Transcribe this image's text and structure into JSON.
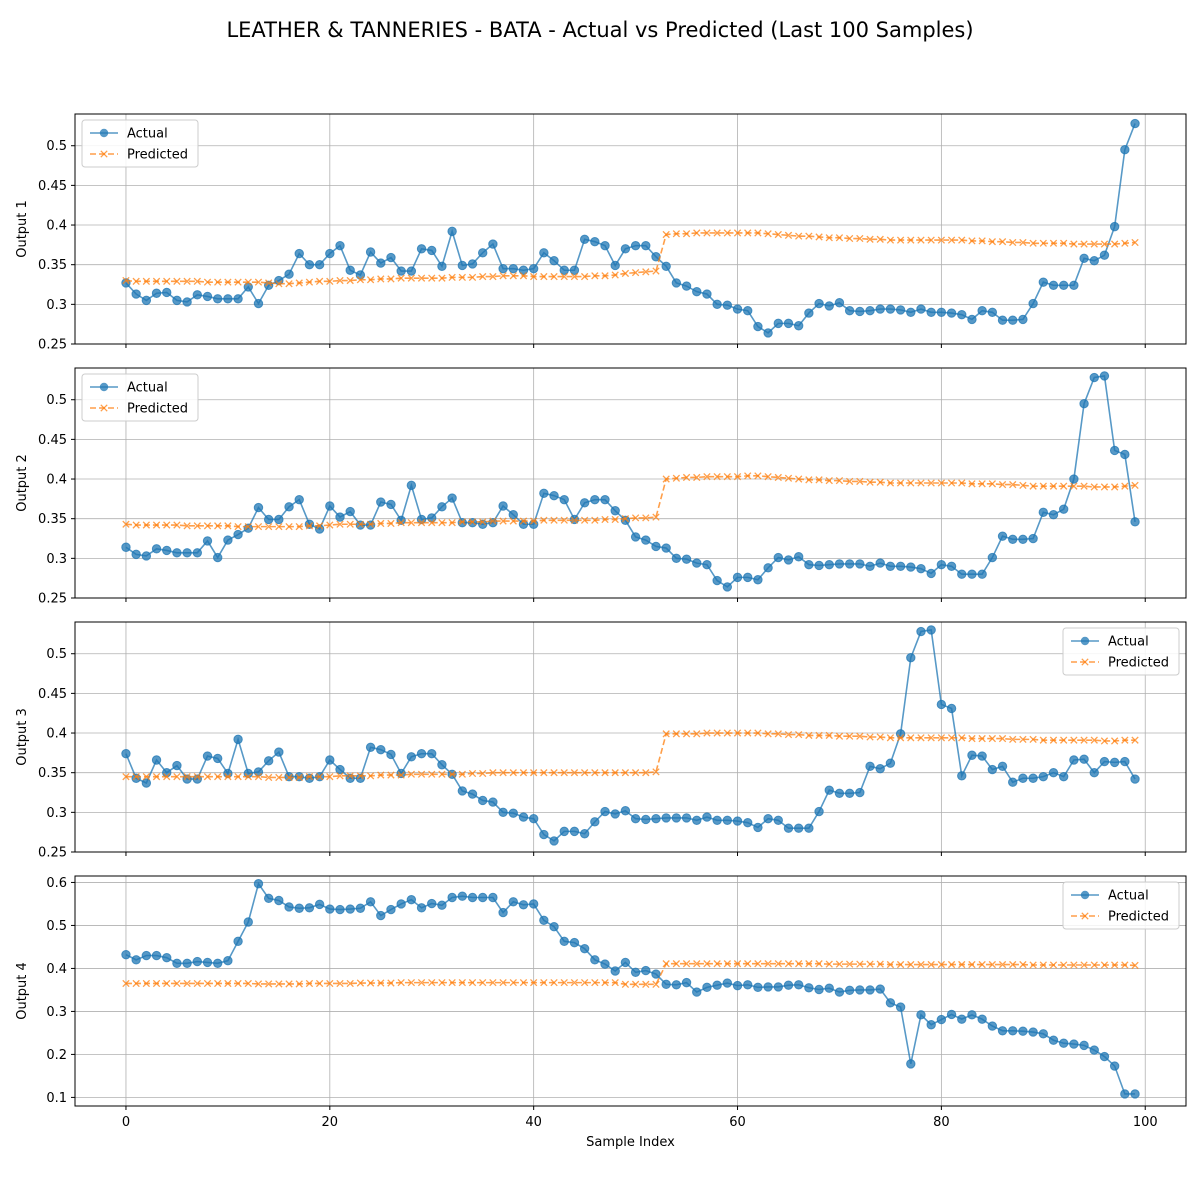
{
  "chart_data": {
    "type": "line",
    "title": "LEATHER & TANNERIES - BATA - Actual vs Predicted (Last 100 Samples)",
    "xlabel": "Sample Index",
    "x_range": [
      0,
      99
    ],
    "xlim": [
      -5,
      104
    ],
    "xticks": [
      0,
      20,
      40,
      60,
      80,
      100
    ],
    "grid": true,
    "colors": {
      "actual": "#1f77b4",
      "predicted": "#ff7f0e"
    },
    "subplots": [
      {
        "ylabel": "Output 1",
        "ylim": [
          0.25,
          0.54
        ],
        "yticks": [
          0.25,
          0.3,
          0.35,
          0.4,
          0.45,
          0.5
        ],
        "legend_position": "upper left",
        "series": [
          {
            "name": "Actual",
            "marker": "circle",
            "linestyle": "solid",
            "values": [
              0.327,
              0.313,
              0.305,
              0.314,
              0.315,
              0.305,
              0.303,
              0.312,
              0.31,
              0.307,
              0.307,
              0.307,
              0.322,
              0.301,
              0.324,
              0.33,
              0.338,
              0.364,
              0.35,
              0.35,
              0.364,
              0.374,
              0.343,
              0.337,
              0.366,
              0.352,
              0.359,
              0.342,
              0.342,
              0.37,
              0.368,
              0.348,
              0.392,
              0.349,
              0.351,
              0.365,
              0.376,
              0.345,
              0.345,
              0.343,
              0.345,
              0.365,
              0.355,
              0.343,
              0.343,
              0.382,
              0.379,
              0.374,
              0.349,
              0.37,
              0.374,
              0.374,
              0.36,
              0.348,
              0.327,
              0.323,
              0.316,
              0.313,
              0.3,
              0.299,
              0.294,
              0.292,
              0.272,
              0.264,
              0.276,
              0.276,
              0.273,
              0.289,
              0.301,
              0.298,
              0.302,
              0.292,
              0.291,
              0.292,
              0.294,
              0.294,
              0.293,
              0.29,
              0.294,
              0.29,
              0.29,
              0.289,
              0.287,
              0.281,
              0.292,
              0.29,
              0.28,
              0.28,
              0.281,
              0.301,
              0.328,
              0.324,
              0.324,
              0.324,
              0.358,
              0.355,
              0.362,
              0.398,
              0.495,
              0.528
            ]
          },
          {
            "name": "Predicted",
            "marker": "x",
            "linestyle": "dashed",
            "values": [
              0.33,
              0.329,
              0.329,
              0.329,
              0.329,
              0.329,
              0.329,
              0.329,
              0.328,
              0.328,
              0.328,
              0.328,
              0.328,
              0.328,
              0.327,
              0.326,
              0.326,
              0.327,
              0.328,
              0.329,
              0.329,
              0.33,
              0.33,
              0.331,
              0.331,
              0.332,
              0.332,
              0.333,
              0.333,
              0.333,
              0.333,
              0.333,
              0.334,
              0.334,
              0.334,
              0.335,
              0.335,
              0.336,
              0.336,
              0.336,
              0.335,
              0.335,
              0.335,
              0.335,
              0.335,
              0.335,
              0.336,
              0.336,
              0.337,
              0.339,
              0.34,
              0.341,
              0.342,
              0.388,
              0.389,
              0.389,
              0.39,
              0.39,
              0.39,
              0.39,
              0.39,
              0.39,
              0.39,
              0.389,
              0.388,
              0.387,
              0.386,
              0.386,
              0.385,
              0.384,
              0.384,
              0.383,
              0.383,
              0.382,
              0.382,
              0.381,
              0.381,
              0.381,
              0.381,
              0.381,
              0.381,
              0.381,
              0.381,
              0.38,
              0.38,
              0.379,
              0.379,
              0.378,
              0.378,
              0.377,
              0.377,
              0.377,
              0.377,
              0.376,
              0.376,
              0.376,
              0.376,
              0.376,
              0.377,
              0.378
            ]
          }
        ]
      },
      {
        "ylabel": "Output 2",
        "ylim": [
          0.25,
          0.54
        ],
        "yticks": [
          0.25,
          0.3,
          0.35,
          0.4,
          0.45,
          0.5
        ],
        "legend_position": "upper left",
        "series": [
          {
            "name": "Actual",
            "marker": "circle",
            "linestyle": "solid",
            "values": [
              0.314,
              0.305,
              0.303,
              0.312,
              0.31,
              0.307,
              0.307,
              0.307,
              0.322,
              0.301,
              0.323,
              0.33,
              0.338,
              0.364,
              0.349,
              0.349,
              0.365,
              0.374,
              0.343,
              0.337,
              0.366,
              0.352,
              0.359,
              0.342,
              0.342,
              0.371,
              0.368,
              0.348,
              0.392,
              0.349,
              0.351,
              0.365,
              0.376,
              0.345,
              0.345,
              0.343,
              0.345,
              0.366,
              0.355,
              0.343,
              0.343,
              0.382,
              0.379,
              0.374,
              0.349,
              0.37,
              0.374,
              0.374,
              0.36,
              0.348,
              0.327,
              0.323,
              0.315,
              0.313,
              0.3,
              0.299,
              0.294,
              0.292,
              0.272,
              0.264,
              0.276,
              0.276,
              0.273,
              0.288,
              0.301,
              0.298,
              0.302,
              0.292,
              0.291,
              0.292,
              0.293,
              0.293,
              0.293,
              0.29,
              0.294,
              0.29,
              0.29,
              0.289,
              0.287,
              0.281,
              0.292,
              0.29,
              0.28,
              0.28,
              0.28,
              0.301,
              0.328,
              0.324,
              0.324,
              0.325,
              0.358,
              0.355,
              0.362,
              0.4,
              0.495,
              0.528,
              0.53,
              0.436,
              0.431,
              0.346
            ]
          },
          {
            "name": "Predicted",
            "marker": "x",
            "linestyle": "dashed",
            "values": [
              0.343,
              0.342,
              0.342,
              0.342,
              0.342,
              0.342,
              0.341,
              0.341,
              0.341,
              0.341,
              0.341,
              0.34,
              0.34,
              0.34,
              0.34,
              0.34,
              0.34,
              0.34,
              0.341,
              0.341,
              0.342,
              0.343,
              0.343,
              0.343,
              0.343,
              0.344,
              0.344,
              0.345,
              0.345,
              0.345,
              0.345,
              0.345,
              0.345,
              0.346,
              0.346,
              0.346,
              0.347,
              0.347,
              0.347,
              0.347,
              0.347,
              0.348,
              0.348,
              0.348,
              0.348,
              0.348,
              0.348,
              0.349,
              0.349,
              0.35,
              0.351,
              0.351,
              0.352,
              0.4,
              0.401,
              0.402,
              0.402,
              0.403,
              0.403,
              0.403,
              0.403,
              0.404,
              0.404,
              0.403,
              0.402,
              0.401,
              0.4,
              0.399,
              0.399,
              0.398,
              0.398,
              0.397,
              0.397,
              0.396,
              0.396,
              0.395,
              0.395,
              0.395,
              0.395,
              0.395,
              0.395,
              0.395,
              0.395,
              0.394,
              0.394,
              0.394,
              0.393,
              0.393,
              0.392,
              0.391,
              0.391,
              0.391,
              0.391,
              0.391,
              0.391,
              0.39,
              0.39,
              0.39,
              0.391,
              0.392
            ]
          }
        ]
      },
      {
        "ylabel": "Output 3",
        "ylim": [
          0.25,
          0.54
        ],
        "yticks": [
          0.25,
          0.3,
          0.35,
          0.4,
          0.45,
          0.5
        ],
        "legend_position": "upper right",
        "series": [
          {
            "name": "Actual",
            "marker": "circle",
            "linestyle": "solid",
            "values": [
              0.374,
              0.343,
              0.337,
              0.366,
              0.35,
              0.359,
              0.342,
              0.342,
              0.371,
              0.368,
              0.349,
              0.392,
              0.349,
              0.351,
              0.365,
              0.376,
              0.345,
              0.345,
              0.343,
              0.345,
              0.366,
              0.354,
              0.343,
              0.343,
              0.382,
              0.379,
              0.373,
              0.349,
              0.37,
              0.374,
              0.374,
              0.36,
              0.348,
              0.327,
              0.323,
              0.315,
              0.313,
              0.3,
              0.299,
              0.294,
              0.292,
              0.272,
              0.264,
              0.276,
              0.276,
              0.273,
              0.288,
              0.301,
              0.298,
              0.302,
              0.292,
              0.291,
              0.292,
              0.293,
              0.293,
              0.293,
              0.29,
              0.294,
              0.29,
              0.29,
              0.289,
              0.287,
              0.281,
              0.292,
              0.29,
              0.28,
              0.28,
              0.28,
              0.301,
              0.328,
              0.324,
              0.324,
              0.325,
              0.358,
              0.355,
              0.362,
              0.399,
              0.495,
              0.528,
              0.53,
              0.436,
              0.431,
              0.346,
              0.372,
              0.371,
              0.354,
              0.358,
              0.338,
              0.343,
              0.343,
              0.345,
              0.35,
              0.345,
              0.366,
              0.367,
              0.35,
              0.364,
              0.363,
              0.364,
              0.342
            ]
          },
          {
            "name": "Predicted",
            "marker": "x",
            "linestyle": "dashed",
            "values": [
              0.345,
              0.345,
              0.345,
              0.345,
              0.345,
              0.345,
              0.345,
              0.345,
              0.345,
              0.345,
              0.345,
              0.345,
              0.345,
              0.345,
              0.344,
              0.344,
              0.344,
              0.344,
              0.345,
              0.345,
              0.345,
              0.346,
              0.346,
              0.346,
              0.346,
              0.347,
              0.347,
              0.347,
              0.348,
              0.348,
              0.348,
              0.348,
              0.348,
              0.348,
              0.349,
              0.349,
              0.35,
              0.35,
              0.35,
              0.35,
              0.35,
              0.35,
              0.35,
              0.35,
              0.35,
              0.35,
              0.35,
              0.35,
              0.35,
              0.35,
              0.35,
              0.35,
              0.351,
              0.399,
              0.399,
              0.399,
              0.399,
              0.4,
              0.4,
              0.4,
              0.4,
              0.4,
              0.4,
              0.399,
              0.399,
              0.398,
              0.398,
              0.397,
              0.397,
              0.397,
              0.396,
              0.396,
              0.396,
              0.395,
              0.395,
              0.394,
              0.394,
              0.394,
              0.394,
              0.394,
              0.394,
              0.394,
              0.394,
              0.393,
              0.393,
              0.393,
              0.393,
              0.392,
              0.392,
              0.392,
              0.391,
              0.391,
              0.391,
              0.391,
              0.391,
              0.391,
              0.39,
              0.39,
              0.391,
              0.391
            ]
          }
        ]
      },
      {
        "ylabel": "Output 4",
        "ylim": [
          0.08,
          0.615
        ],
        "yticks": [
          0.1,
          0.2,
          0.3,
          0.4,
          0.5,
          0.6
        ],
        "legend_position": "upper right",
        "series": [
          {
            "name": "Actual",
            "marker": "circle",
            "linestyle": "solid",
            "values": [
              0.432,
              0.42,
              0.43,
              0.43,
              0.425,
              0.412,
              0.412,
              0.416,
              0.414,
              0.412,
              0.418,
              0.463,
              0.508,
              0.597,
              0.563,
              0.558,
              0.543,
              0.54,
              0.541,
              0.549,
              0.538,
              0.537,
              0.538,
              0.54,
              0.555,
              0.523,
              0.537,
              0.55,
              0.56,
              0.541,
              0.551,
              0.547,
              0.565,
              0.568,
              0.565,
              0.565,
              0.565,
              0.53,
              0.555,
              0.548,
              0.55,
              0.512,
              0.497,
              0.463,
              0.46,
              0.446,
              0.42,
              0.41,
              0.394,
              0.414,
              0.391,
              0.395,
              0.387,
              0.363,
              0.362,
              0.367,
              0.345,
              0.356,
              0.361,
              0.366,
              0.36,
              0.362,
              0.356,
              0.357,
              0.357,
              0.361,
              0.362,
              0.355,
              0.351,
              0.354,
              0.345,
              0.349,
              0.35,
              0.35,
              0.352,
              0.32,
              0.31,
              0.178,
              0.292,
              0.269,
              0.281,
              0.293,
              0.282,
              0.292,
              0.282,
              0.266,
              0.255,
              0.255,
              0.254,
              0.252,
              0.248,
              0.233,
              0.226,
              0.224,
              0.221,
              0.21,
              0.195,
              0.173,
              0.108,
              0.108
            ]
          },
          {
            "name": "Predicted",
            "marker": "x",
            "linestyle": "dashed",
            "values": [
              0.365,
              0.365,
              0.365,
              0.365,
              0.365,
              0.365,
              0.365,
              0.365,
              0.365,
              0.365,
              0.365,
              0.365,
              0.365,
              0.364,
              0.364,
              0.364,
              0.364,
              0.364,
              0.365,
              0.365,
              0.365,
              0.365,
              0.365,
              0.366,
              0.366,
              0.366,
              0.366,
              0.367,
              0.367,
              0.367,
              0.367,
              0.367,
              0.367,
              0.367,
              0.367,
              0.367,
              0.367,
              0.367,
              0.367,
              0.367,
              0.367,
              0.367,
              0.367,
              0.367,
              0.367,
              0.367,
              0.367,
              0.367,
              0.367,
              0.363,
              0.363,
              0.363,
              0.363,
              0.411,
              0.411,
              0.411,
              0.411,
              0.411,
              0.411,
              0.411,
              0.411,
              0.411,
              0.411,
              0.411,
              0.411,
              0.411,
              0.411,
              0.411,
              0.411,
              0.41,
              0.41,
              0.41,
              0.41,
              0.41,
              0.41,
              0.409,
              0.409,
              0.409,
              0.409,
              0.409,
              0.409,
              0.409,
              0.409,
              0.409,
              0.409,
              0.409,
              0.409,
              0.409,
              0.409,
              0.408,
              0.408,
              0.408,
              0.408,
              0.408,
              0.408,
              0.408,
              0.408,
              0.408,
              0.408,
              0.407
            ]
          }
        ]
      }
    ]
  }
}
